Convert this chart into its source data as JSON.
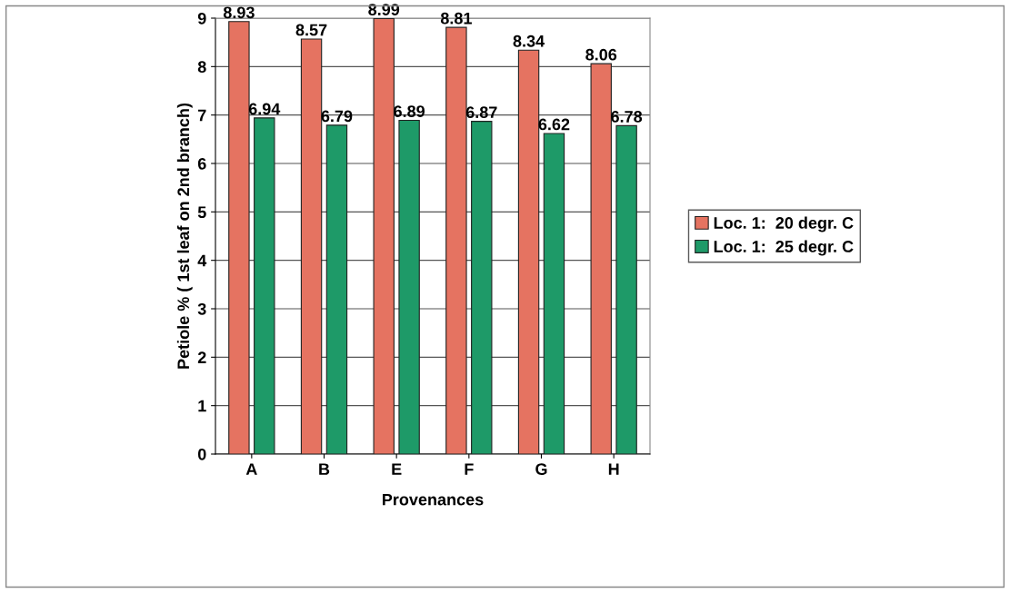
{
  "chart_data": {
    "type": "bar",
    "xlabel": "Provenances",
    "ylabel": "Petiole % ( 1st leaf on 2nd branch)",
    "categories": [
      "A",
      "B",
      "E",
      "F",
      "G",
      "H"
    ],
    "series": [
      {
        "name": "Loc. 1:  20 degr. C",
        "color": "#e57361",
        "values": [
          8.93,
          8.57,
          8.99,
          8.81,
          8.34,
          8.06
        ]
      },
      {
        "name": "Loc. 1:  25 degr. C",
        "color": "#1e9a68",
        "values": [
          6.94,
          6.79,
          6.89,
          6.87,
          6.62,
          6.78
        ]
      }
    ],
    "ylim": [
      0,
      9
    ],
    "yticks": [
      0,
      1,
      2,
      3,
      4,
      5,
      6,
      7,
      8,
      9
    ],
    "grid": "y",
    "legend": "right",
    "data_labels": true
  }
}
